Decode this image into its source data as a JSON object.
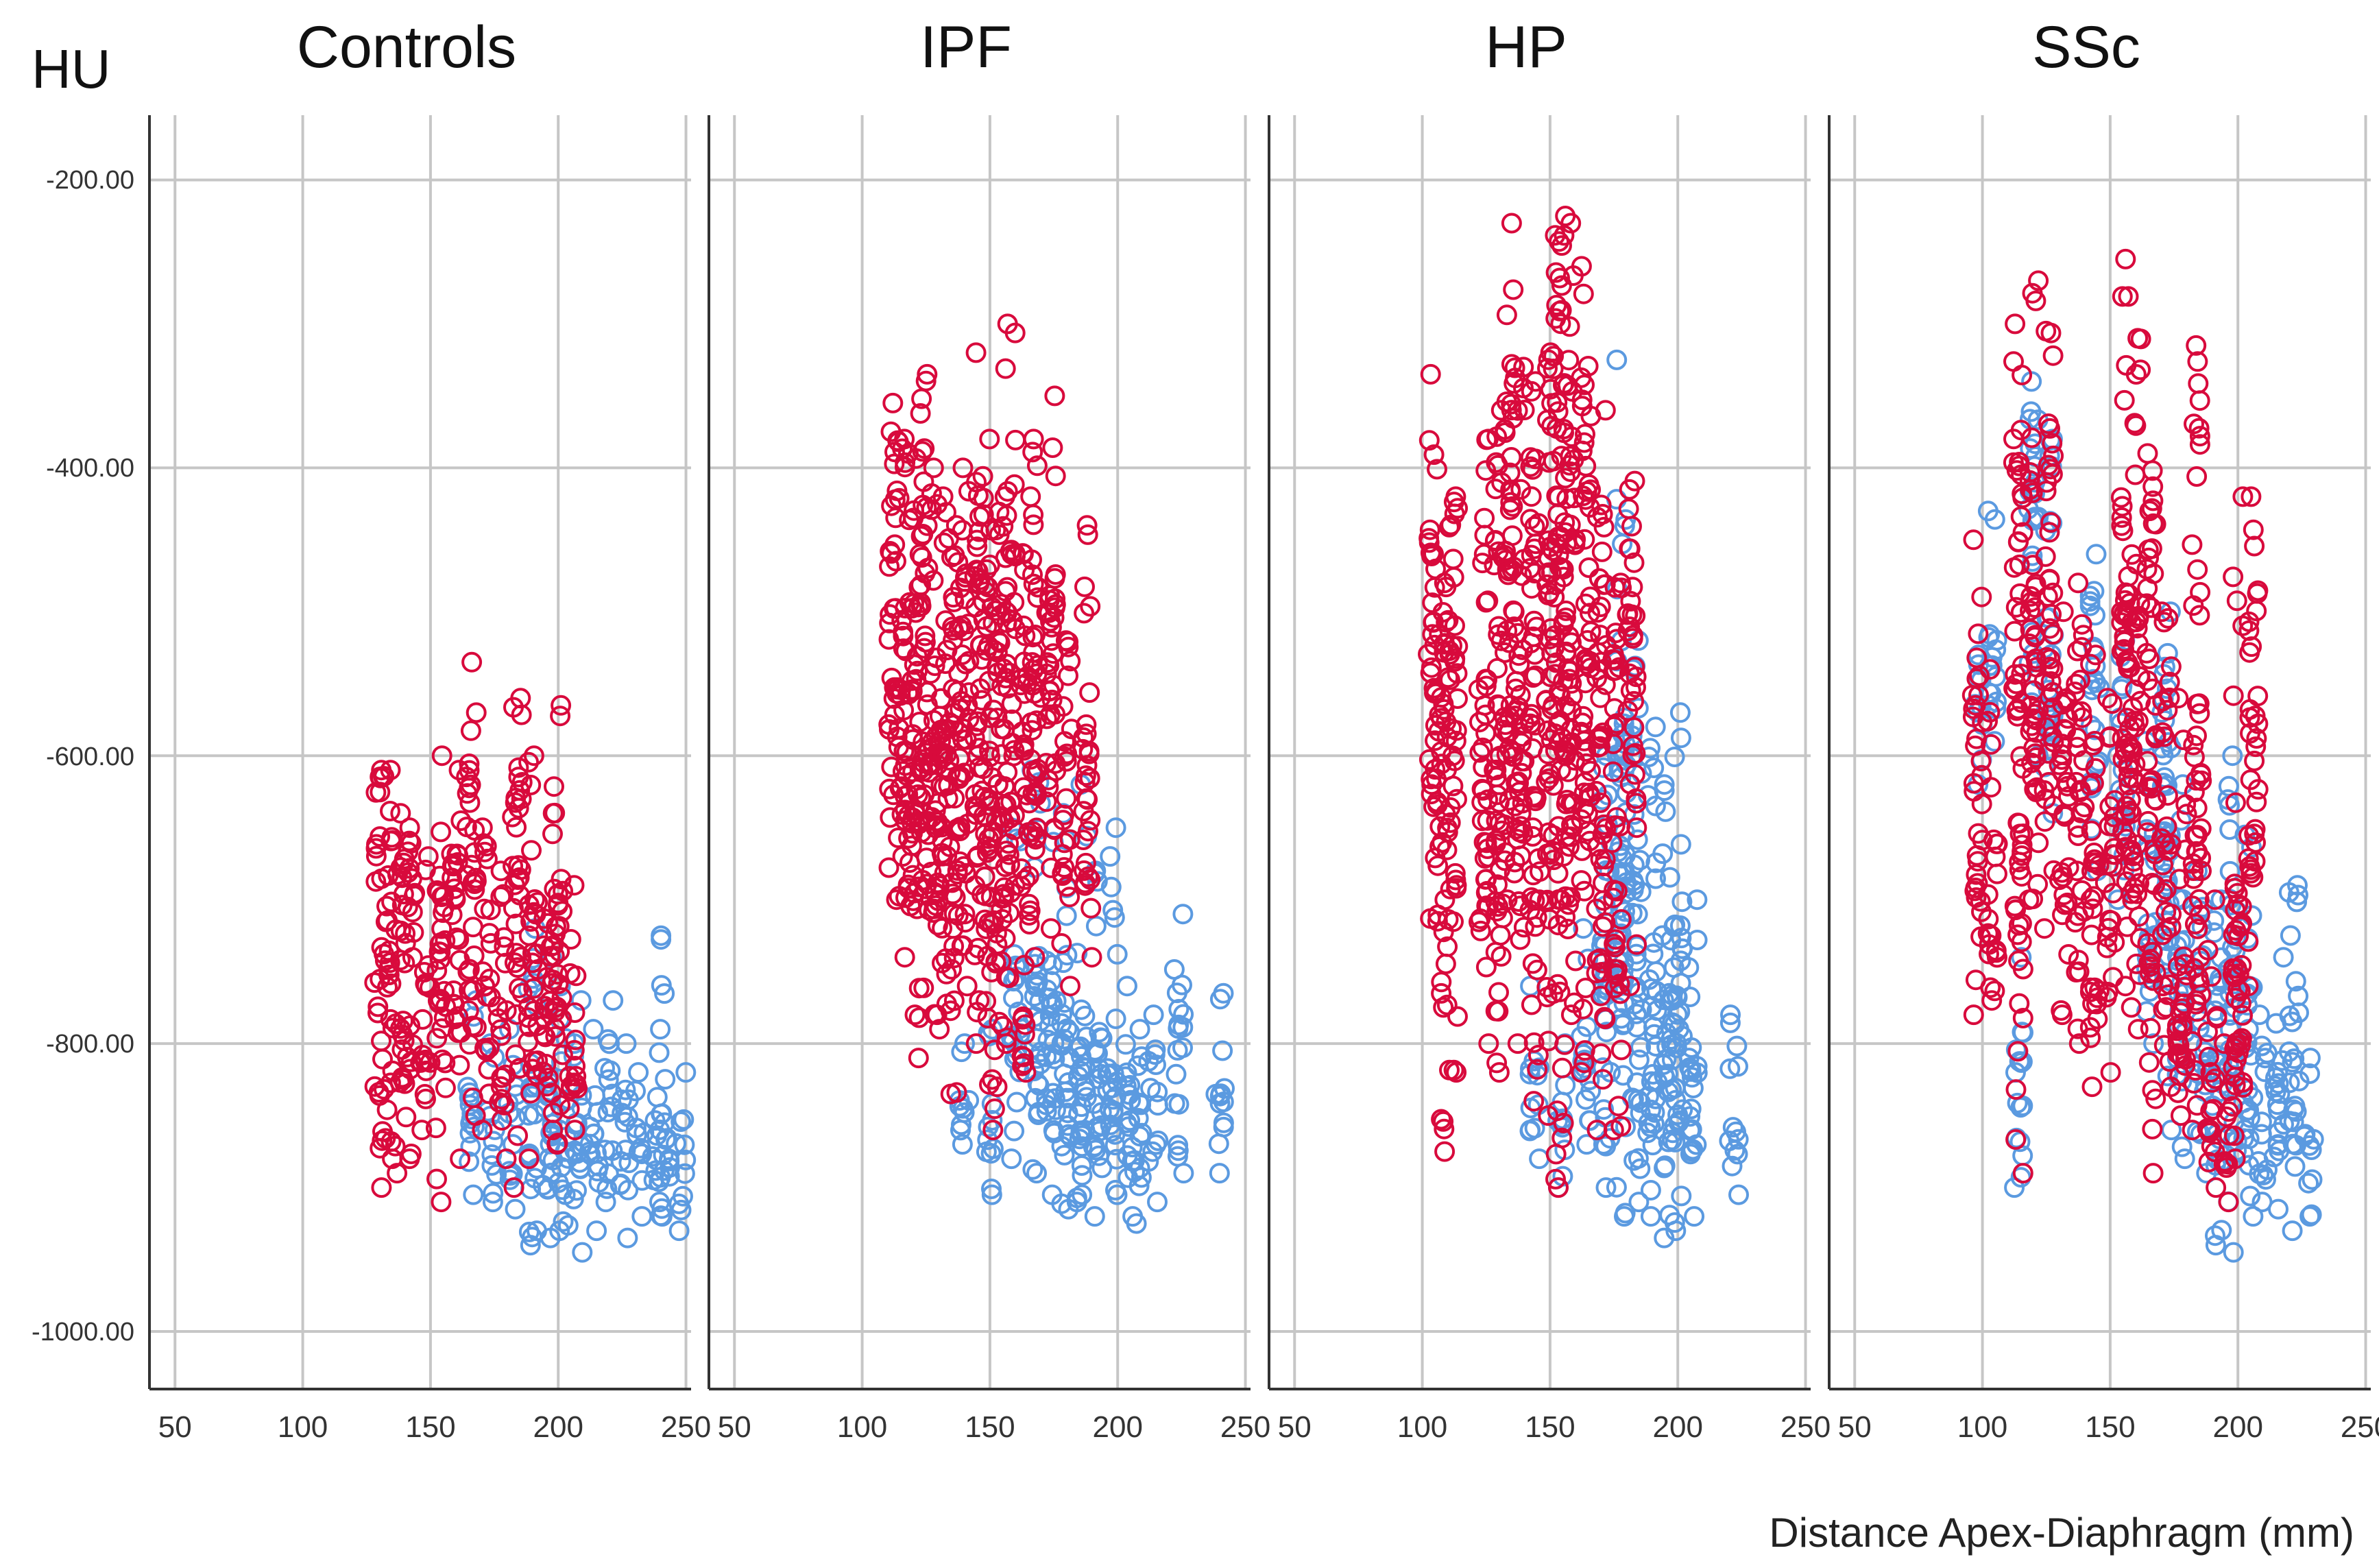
{
  "chart_data": {
    "type": "scatter",
    "ylabel": "HU",
    "xlabel": "Distance Apex-Diaphragm (mm)",
    "xlim": [
      40,
      252
    ],
    "ylim": [
      -1040,
      -155
    ],
    "xticks": [
      50,
      100,
      150,
      200,
      250
    ],
    "yticks": [
      -200,
      -400,
      -600,
      -800,
      -1000
    ],
    "ytick_labels": [
      "-200.00",
      "-400.00",
      "-600.00",
      "-800.00",
      "-1000.00"
    ],
    "colors": {
      "red_series": "#d80a3c",
      "blue_series": "#5b9ae0"
    },
    "grid": true,
    "marker": "open-circle",
    "panels": [
      {
        "title": "Controls",
        "red_series": [
          {
            "x": 130,
            "y": [
              -610,
              -720,
              -900
            ]
          },
          {
            "x": 134,
            "y": [
              -610,
              -730,
              -880
            ]
          },
          {
            "x": 138,
            "y": [
              -640,
              -760,
              -890
            ]
          },
          {
            "x": 142,
            "y": [
              -650,
              -740,
              -880
            ]
          },
          {
            "x": 148,
            "y": [
              -670,
              -780,
              -860
            ]
          },
          {
            "x": 154,
            "y": [
              -600,
              -760,
              -910
            ]
          },
          {
            "x": 160,
            "y": [
              -610,
              -730,
              -880
            ]
          },
          {
            "x": 166,
            "y": [
              -535,
              -690,
              -850
            ]
          },
          {
            "x": 172,
            "y": [
              -650,
              -760,
              -860
            ]
          },
          {
            "x": 178,
            "y": [
              -680,
              -790,
              -880
            ]
          },
          {
            "x": 184,
            "y": [
              -560,
              -700,
              -900
            ]
          },
          {
            "x": 190,
            "y": [
              -600,
              -760,
              -880
            ]
          },
          {
            "x": 196,
            "y": [
              -640,
              -770,
              -860
            ]
          },
          {
            "x": 200,
            "y": [
              -565,
              -740,
              -870
            ]
          },
          {
            "x": 206,
            "y": [
              -690,
              -790,
              -860
            ]
          }
        ],
        "blue_series": [
          {
            "x": 166,
            "y": [
              -770,
              -850,
              -905
            ]
          },
          {
            "x": 174,
            "y": [
              -800,
              -870,
              -910
            ]
          },
          {
            "x": 182,
            "y": [
              -790,
              -860,
              -915
            ]
          },
          {
            "x": 190,
            "y": [
              -720,
              -850,
              -940
            ]
          },
          {
            "x": 196,
            "y": [
              -740,
              -860,
              -935
            ]
          },
          {
            "x": 202,
            "y": [
              -760,
              -870,
              -930
            ]
          },
          {
            "x": 208,
            "y": [
              -770,
              -880,
              -945
            ]
          },
          {
            "x": 214,
            "y": [
              -790,
              -870,
              -930
            ]
          },
          {
            "x": 220,
            "y": [
              -770,
              -850,
              -910
            ]
          },
          {
            "x": 226,
            "y": [
              -800,
              -870,
              -935
            ]
          },
          {
            "x": 232,
            "y": [
              -820,
              -880,
              -920
            ]
          },
          {
            "x": 238,
            "y": [
              -790,
              -860,
              -910
            ]
          },
          {
            "x": 242,
            "y": [
              -725,
              -860,
              -920
            ]
          },
          {
            "x": 248,
            "y": [
              -820,
              -880,
              -930
            ]
          }
        ]
      },
      {
        "title": "IPF",
        "red_series": [
          {
            "x": 112,
            "y": [
              -355,
              -520,
              -700
            ]
          },
          {
            "x": 116,
            "y": [
              -380,
              -560,
              -740
            ]
          },
          {
            "x": 120,
            "y": [
              -390,
              -600,
              -780
            ]
          },
          {
            "x": 124,
            "y": [
              -335,
              -540,
              -810
            ]
          },
          {
            "x": 128,
            "y": [
              -400,
              -620,
              -780
            ]
          },
          {
            "x": 132,
            "y": [
              -420,
              -640,
              -790
            ]
          },
          {
            "x": 136,
            "y": [
              -440,
              -600,
              -835
            ]
          },
          {
            "x": 140,
            "y": [
              -400,
              -580,
              -760
            ]
          },
          {
            "x": 146,
            "y": [
              -320,
              -560,
              -800
            ]
          },
          {
            "x": 150,
            "y": [
              -380,
              -600,
              -860
            ]
          },
          {
            "x": 154,
            "y": [
              -420,
              -620,
              -830
            ]
          },
          {
            "x": 158,
            "y": [
              -300,
              -560,
              -800
            ]
          },
          {
            "x": 164,
            "y": [
              -420,
              -600,
              -820
            ]
          },
          {
            "x": 168,
            "y": [
              -380,
              -560,
              -740
            ]
          },
          {
            "x": 174,
            "y": [
              -350,
              -560,
              -720
            ]
          },
          {
            "x": 180,
            "y": [
              -520,
              -640,
              -760
            ]
          },
          {
            "x": 188,
            "y": [
              -440,
              -620,
              -740
            ]
          }
        ],
        "blue_series": [
          {
            "x": 140,
            "y": [
              -800,
              -850,
              -870
            ]
          },
          {
            "x": 150,
            "y": [
              -790,
              -860,
              -905
            ]
          },
          {
            "x": 160,
            "y": [
              -650,
              -790,
              -880
            ]
          },
          {
            "x": 168,
            "y": [
              -610,
              -790,
              -890
            ]
          },
          {
            "x": 174,
            "y": [
              -660,
              -800,
              -905
            ]
          },
          {
            "x": 180,
            "y": [
              -640,
              -830,
              -915
            ]
          },
          {
            "x": 186,
            "y": [
              -620,
              -820,
              -910
            ]
          },
          {
            "x": 192,
            "y": [
              -680,
              -840,
              -920
            ]
          },
          {
            "x": 198,
            "y": [
              -650,
              -850,
              -905
            ]
          },
          {
            "x": 204,
            "y": [
              -760,
              -860,
              -920
            ]
          },
          {
            "x": 208,
            "y": [
              -790,
              -870,
              -925
            ]
          },
          {
            "x": 214,
            "y": [
              -780,
              -850,
              -910
            ]
          },
          {
            "x": 224,
            "y": [
              -710,
              -800,
              -890
            ]
          },
          {
            "x": 240,
            "y": [
              -765,
              -850,
              -890
            ]
          }
        ]
      },
      {
        "title": "HP",
        "red_series": [
          {
            "x": 104,
            "y": [
              -335,
              -530,
              -715
            ]
          },
          {
            "x": 108,
            "y": [
              -480,
              -640,
              -875
            ]
          },
          {
            "x": 112,
            "y": [
              -420,
              -560,
              -820
            ]
          },
          {
            "x": 124,
            "y": [
              -380,
              -580,
              -800
            ]
          },
          {
            "x": 130,
            "y": [
              -360,
              -620,
              -820
            ]
          },
          {
            "x": 134,
            "y": [
              -230,
              -460,
              -700
            ]
          },
          {
            "x": 138,
            "y": [
              -330,
              -620,
              -800
            ]
          },
          {
            "x": 144,
            "y": [
              -340,
              -560,
              -840
            ]
          },
          {
            "x": 150,
            "y": [
              -320,
              -520,
              -850
            ]
          },
          {
            "x": 154,
            "y": [
              -225,
              -480,
              -900
            ]
          },
          {
            "x": 158,
            "y": [
              -230,
              -500,
              -780
            ]
          },
          {
            "x": 164,
            "y": [
              -260,
              -520,
              -820
            ]
          },
          {
            "x": 170,
            "y": [
              -360,
              -580,
              -860
            ]
          },
          {
            "x": 176,
            "y": [
              -480,
              -640,
              -860
            ]
          },
          {
            "x": 182,
            "y": [
              -415,
              -540,
              -760
            ]
          }
        ],
        "blue_series": [
          {
            "x": 144,
            "y": [
              -760,
              -840,
              -880
            ]
          },
          {
            "x": 154,
            "y": [
              -800,
              -860,
              -900
            ]
          },
          {
            "x": 164,
            "y": [
              -720,
              -830,
              -870
            ]
          },
          {
            "x": 172,
            "y": [
              -600,
              -760,
              -900
            ]
          },
          {
            "x": 178,
            "y": [
              -325,
              -700,
              -920
            ]
          },
          {
            "x": 184,
            "y": [
              -520,
              -760,
              -910
            ]
          },
          {
            "x": 190,
            "y": [
              -580,
              -800,
              -920
            ]
          },
          {
            "x": 196,
            "y": [
              -620,
              -820,
              -935
            ]
          },
          {
            "x": 200,
            "y": [
              -570,
              -780,
              -930
            ]
          },
          {
            "x": 206,
            "y": [
              -700,
              -840,
              -920
            ]
          },
          {
            "x": 222,
            "y": [
              -780,
              -870,
              -905
            ]
          }
        ]
      },
      {
        "title": "SSc",
        "red_series": [
          {
            "x": 98,
            "y": [
              -450,
              -620,
              -780
            ]
          },
          {
            "x": 104,
            "y": [
              -540,
              -700,
              -770
            ]
          },
          {
            "x": 114,
            "y": [
              -300,
              -540,
              -890
            ]
          },
          {
            "x": 120,
            "y": [
              -270,
              -560,
              -700
            ]
          },
          {
            "x": 126,
            "y": [
              -305,
              -540,
              -720
            ]
          },
          {
            "x": 132,
            "y": [
              -500,
              -640,
              -780
            ]
          },
          {
            "x": 138,
            "y": [
              -480,
              -620,
              -800
            ]
          },
          {
            "x": 144,
            "y": [
              -530,
              -690,
              -830
            ]
          },
          {
            "x": 150,
            "y": [
              -560,
              -700,
              -820
            ]
          },
          {
            "x": 156,
            "y": [
              -255,
              -540,
              -760
            ]
          },
          {
            "x": 160,
            "y": [
              -310,
              -600,
              -790
            ]
          },
          {
            "x": 166,
            "y": [
              -390,
              -580,
              -890
            ]
          },
          {
            "x": 172,
            "y": [
              -500,
              -700,
              -830
            ]
          },
          {
            "x": 178,
            "y": [
              -560,
              -780,
              -850
            ]
          },
          {
            "x": 184,
            "y": [
              -315,
              -660,
              -860
            ]
          },
          {
            "x": 190,
            "y": [
              -700,
              -840,
              -900
            ]
          },
          {
            "x": 196,
            "y": [
              -800,
              -860,
              -910
            ]
          },
          {
            "x": 200,
            "y": [
              -420,
              -760,
              -880
            ]
          },
          {
            "x": 206,
            "y": [
              -420,
              -580,
              -760
            ]
          }
        ],
        "blue_series": [
          {
            "x": 98,
            "y": [
              -530,
              -560,
              -620
            ]
          },
          {
            "x": 104,
            "y": [
              -430,
              -540,
              -590
            ]
          },
          {
            "x": 114,
            "y": [
              -740,
              -820,
              -900
            ]
          },
          {
            "x": 120,
            "y": [
              -340,
              -450,
              -600
            ]
          },
          {
            "x": 126,
            "y": [
              -380,
              -560,
              -640
            ]
          },
          {
            "x": 144,
            "y": [
              -460,
              -540,
              -680
            ]
          },
          {
            "x": 154,
            "y": [
              -520,
              -600,
              -700
            ]
          },
          {
            "x": 166,
            "y": [
              -590,
              -700,
              -800
            ]
          },
          {
            "x": 172,
            "y": [
              -500,
              -640,
              -860
            ]
          },
          {
            "x": 178,
            "y": [
              -620,
              -760,
              -880
            ]
          },
          {
            "x": 186,
            "y": [
              -680,
              -780,
              -890
            ]
          },
          {
            "x": 192,
            "y": [
              -700,
              -820,
              -940
            ]
          },
          {
            "x": 198,
            "y": [
              -600,
              -800,
              -945
            ]
          },
          {
            "x": 204,
            "y": [
              -655,
              -820,
              -920
            ]
          },
          {
            "x": 210,
            "y": [
              -780,
              -870,
              -910
            ]
          },
          {
            "x": 216,
            "y": [
              -740,
              -850,
              -915
            ]
          },
          {
            "x": 222,
            "y": [
              -690,
              -820,
              -930
            ]
          },
          {
            "x": 228,
            "y": [
              -810,
              -880,
              -920
            ]
          }
        ]
      }
    ]
  }
}
